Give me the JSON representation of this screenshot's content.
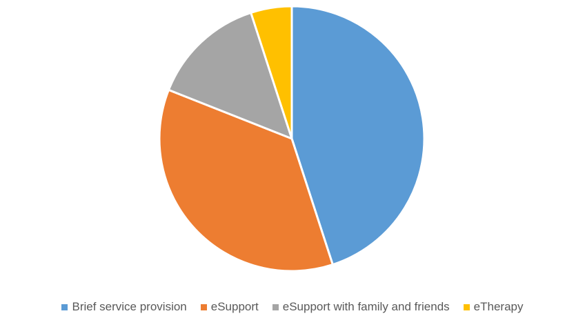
{
  "chart_data": {
    "type": "pie",
    "title": "",
    "categories": [
      "Brief service provision",
      "eSupport",
      "eSupport with family and friends",
      "eTherapy"
    ],
    "values": [
      45,
      36,
      14,
      5
    ],
    "colors": [
      "#5B9BD5",
      "#ED7D31",
      "#A5A5A5",
      "#FFC000"
    ],
    "legend_position": "bottom",
    "start_angle_deg": 0,
    "direction": "clockwise"
  }
}
